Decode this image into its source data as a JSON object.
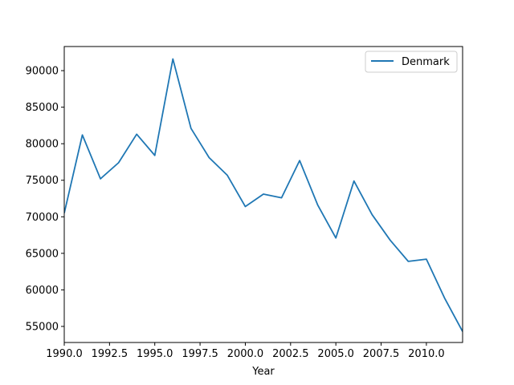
{
  "chart_data": {
    "type": "line",
    "title": "",
    "xlabel": "Year",
    "ylabel": "",
    "xlim": [
      1990,
      2012
    ],
    "ylim": [
      52800,
      93300
    ],
    "xticks": [
      1990,
      1992.5,
      1995,
      1997.5,
      2000,
      2002.5,
      2005,
      2007.5,
      2010
    ],
    "xtick_labels": [
      "1990.0",
      "1992.5",
      "1995.0",
      "1997.5",
      "2000.0",
      "2002.5",
      "2005.0",
      "2007.5",
      "2010.0"
    ],
    "yticks": [
      55000,
      60000,
      65000,
      70000,
      75000,
      80000,
      85000,
      90000
    ],
    "ytick_labels": [
      "55000",
      "60000",
      "65000",
      "70000",
      "75000",
      "80000",
      "85000",
      "90000"
    ],
    "grid": false,
    "legend_position": "top-right",
    "series": [
      {
        "name": "Denmark",
        "color": "#1f77b4",
        "x": [
          1990,
          1991,
          1992,
          1993,
          1994,
          1995,
          1996,
          1997,
          1998,
          1999,
          2000,
          2001,
          2002,
          2003,
          2004,
          2005,
          2006,
          2007,
          2008,
          2009,
          2010,
          2011,
          2012
        ],
        "y": [
          70500,
          81200,
          75200,
          77400,
          81300,
          78400,
          91600,
          82100,
          78100,
          75700,
          71400,
          73100,
          72600,
          77700,
          71600,
          67100,
          74900,
          70300,
          66800,
          63900,
          64200,
          58900,
          54300
        ]
      }
    ]
  }
}
